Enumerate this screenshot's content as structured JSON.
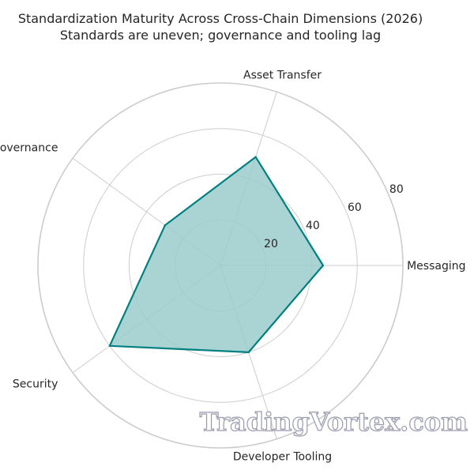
{
  "chart_data": {
    "type": "radar",
    "title": "Standardization Maturity Across Cross-Chain Dimensions (2026)",
    "subtitle": "Standards are uneven; governance and tooling lag",
    "categories": [
      "Messaging",
      "Asset Transfer",
      "Governance",
      "Security",
      "Developer Tooling"
    ],
    "values": [
      45,
      50,
      30,
      60,
      40
    ],
    "rlim": [
      0,
      80
    ],
    "rticks": [
      "20",
      "40",
      "60",
      "80"
    ],
    "grid": true,
    "colors": {
      "line": "#008080",
      "fill": "#9bcbcc",
      "grid": "#cccccc"
    }
  },
  "watermark": "TradingVortex.com"
}
